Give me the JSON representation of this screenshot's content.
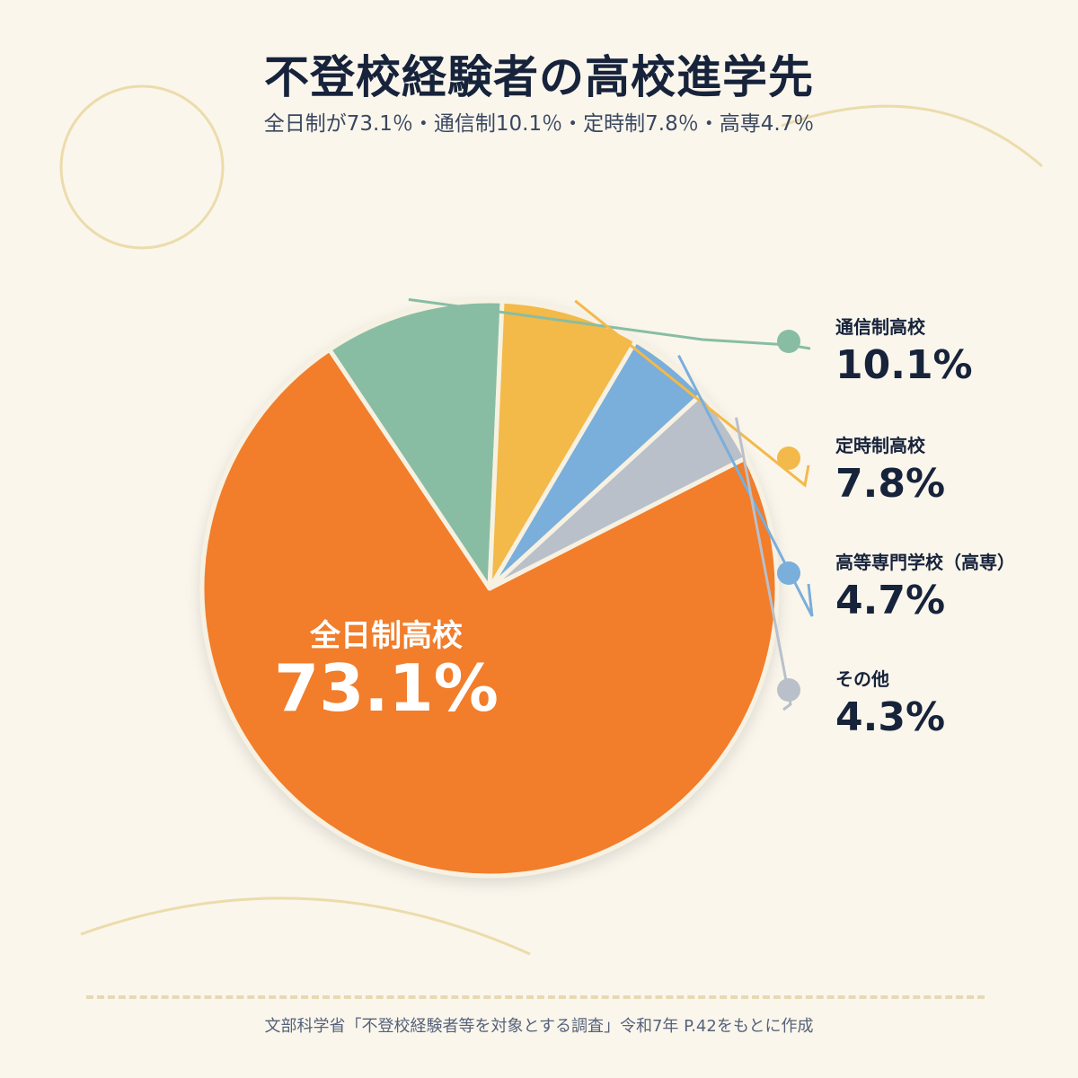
{
  "header": {
    "title": "不登校経験者の高校進学先",
    "subtitle": "全日制が73.1％・通信制10.1％・定時制7.8％・高専4.7％"
  },
  "chart_data": {
    "type": "pie",
    "start_angle_deg": 63,
    "slices": [
      {
        "name": "全日制高校",
        "value": 73.1,
        "label": "73.1%",
        "color": "#f27d2c"
      },
      {
        "name": "通信制高校",
        "value": 10.1,
        "label": "10.1%",
        "color": "#88bda3"
      },
      {
        "name": "定時制高校",
        "value": 7.8,
        "label": "7.8%",
        "color": "#f3b94a"
      },
      {
        "name": "高等専門学校（高専）",
        "value": 4.7,
        "label": "4.7%",
        "color": "#7aaedb"
      },
      {
        "name": "その他",
        "value": 4.3,
        "label": "4.3%",
        "color": "#b9c0ca"
      }
    ]
  },
  "source": "文部科学省「不登校経験者等を対象とする調査」令和7年 P.42をもとに作成"
}
